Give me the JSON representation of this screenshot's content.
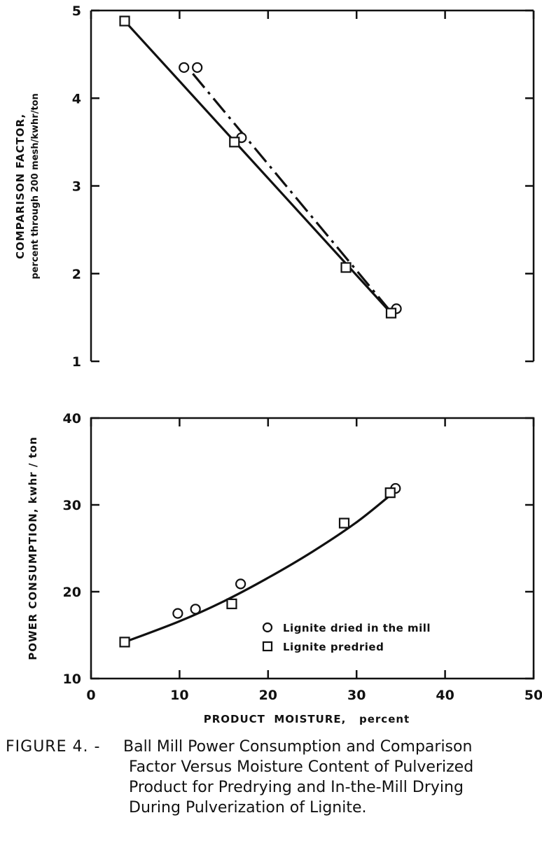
{
  "chart_data": [
    {
      "type": "line",
      "xlim": [
        0,
        50
      ],
      "ylim": [
        1,
        5
      ],
      "yticks": [
        "1",
        "2",
        "3",
        "4",
        "5"
      ],
      "ylabel": "COMPARISON FACTOR,",
      "ylabel_sub": "percent through 200 mesh/kwhr/ton",
      "grid": false,
      "series": [
        {
          "id": "dried-in-mill",
          "marker": "circle",
          "line_style": "dash-dot",
          "points": [
            [
              10.5,
              4.35
            ],
            [
              12.0,
              4.35
            ],
            [
              17.0,
              3.55
            ],
            [
              34.5,
              1.6
            ]
          ],
          "fit_line": [
            [
              11.5,
              4.28
            ],
            [
              34.0,
              1.55
            ]
          ]
        },
        {
          "id": "predried",
          "marker": "square",
          "line_style": "solid",
          "points": [
            [
              3.8,
              4.88
            ],
            [
              16.2,
              3.5
            ],
            [
              28.8,
              2.07
            ],
            [
              33.9,
              1.55
            ]
          ],
          "fit_line": [
            [
              3.8,
              4.88
            ],
            [
              33.9,
              1.55
            ]
          ]
        }
      ]
    },
    {
      "type": "line",
      "xlim": [
        0,
        50
      ],
      "ylim": [
        10,
        40
      ],
      "xticks": [
        "0",
        "10",
        "20",
        "30",
        "40",
        "50"
      ],
      "yticks": [
        "10",
        "20",
        "30",
        "40"
      ],
      "xlabel": "PRODUCT  MOISTURE,   percent",
      "ylabel": "POWER CONSUMPTION,  kwhr / ton",
      "grid": false,
      "legend": {
        "position": "lower-right",
        "entries": [
          {
            "marker": "circle",
            "label": "Lignite dried in the mill"
          },
          {
            "marker": "square",
            "label": "Lignite predried"
          }
        ]
      },
      "series": [
        {
          "id": "dried-in-mill",
          "marker": "circle",
          "points": [
            [
              9.8,
              17.5
            ],
            [
              11.8,
              18.0
            ],
            [
              16.9,
              20.9
            ],
            [
              34.4,
              31.9
            ]
          ]
        },
        {
          "id": "predried",
          "marker": "square",
          "points": [
            [
              3.8,
              14.2
            ],
            [
              15.9,
              18.6
            ],
            [
              28.6,
              27.9
            ],
            [
              33.8,
              31.4
            ]
          ]
        }
      ],
      "fit_curve": [
        [
          3.8,
          14.2
        ],
        [
          10,
          16.6
        ],
        [
          15,
          18.9
        ],
        [
          20,
          21.6
        ],
        [
          25,
          24.6
        ],
        [
          30,
          28.0
        ],
        [
          33.8,
          31.1
        ]
      ]
    }
  ],
  "caption": {
    "label": "FIGURE  4. -",
    "lines": [
      "Ball Mill Power Consumption and Comparison",
      "Factor Versus Moisture Content of Pulverized",
      "Product for Predrying and In-the-Mill Drying",
      "During Pulverization of Lignite."
    ]
  }
}
